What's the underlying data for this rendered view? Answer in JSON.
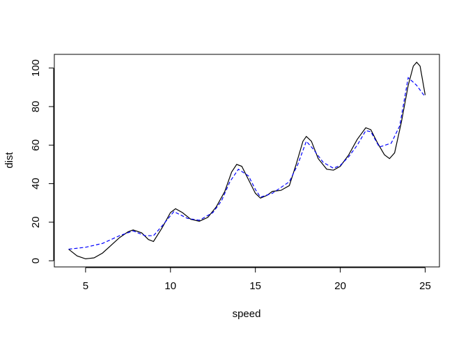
{
  "chart_data": {
    "type": "line",
    "xlabel": "speed",
    "ylabel": "dist",
    "xlim": [
      3.16,
      25.84
    ],
    "ylim": [
      -3.2,
      107.1
    ],
    "xticks": [
      5,
      10,
      15,
      20,
      25
    ],
    "yticks": [
      0,
      20,
      40,
      60,
      80,
      100
    ],
    "series": [
      {
        "color": "#000000",
        "dashed": false,
        "x": [
          4,
          4.5,
          5,
          5.5,
          6,
          6.5,
          7,
          7.5,
          7.8,
          8.3,
          8.7,
          9,
          9.5,
          10,
          10.3,
          10.7,
          11.2,
          11.7,
          12.2,
          12.7,
          13.2,
          13.6,
          13.9,
          14.2,
          14.6,
          15,
          15.3,
          15.7,
          16,
          16.5,
          17,
          17.4,
          17.8,
          18,
          18.3,
          18.7,
          19.2,
          19.6,
          20,
          20.5,
          21,
          21.5,
          21.8,
          22.2,
          22.6,
          22.9,
          23.2,
          23.6,
          24,
          24.3,
          24.5,
          24.7,
          25
        ],
        "values": [
          6,
          2.5,
          1,
          1.5,
          4,
          8,
          12,
          15,
          16,
          14.5,
          11,
          10,
          17,
          25,
          27,
          25,
          21.5,
          20.5,
          22.5,
          28,
          36,
          46,
          50,
          49,
          42,
          35,
          32.5,
          34,
          36,
          36.5,
          39,
          50,
          62,
          64.5,
          62,
          53,
          47.5,
          47,
          49,
          55,
          63,
          69,
          68,
          61,
          55,
          53,
          56,
          72,
          91,
          101,
          103,
          101,
          86
        ]
      },
      {
        "color": "#0000ff",
        "dashed": true,
        "x": [
          4,
          5,
          6,
          7,
          7.8,
          8.5,
          9,
          9.5,
          10.2,
          11,
          11.7,
          12.5,
          13,
          13.5,
          14,
          14.6,
          15,
          15.3,
          16,
          17,
          17.5,
          18,
          18.4,
          19,
          19.6,
          20,
          20.5,
          21,
          21.5,
          21.8,
          22.3,
          23,
          23.5,
          24,
          24.5,
          25
        ],
        "values": [
          6,
          7,
          9,
          13,
          15.5,
          13,
          13,
          18,
          25.5,
          22,
          21,
          25,
          31,
          41,
          47.5,
          44,
          37,
          33,
          35,
          41,
          50,
          62,
          58,
          51,
          48,
          49.5,
          54,
          60,
          67.5,
          67,
          59,
          61,
          70,
          95,
          91,
          85
        ]
      }
    ]
  }
}
